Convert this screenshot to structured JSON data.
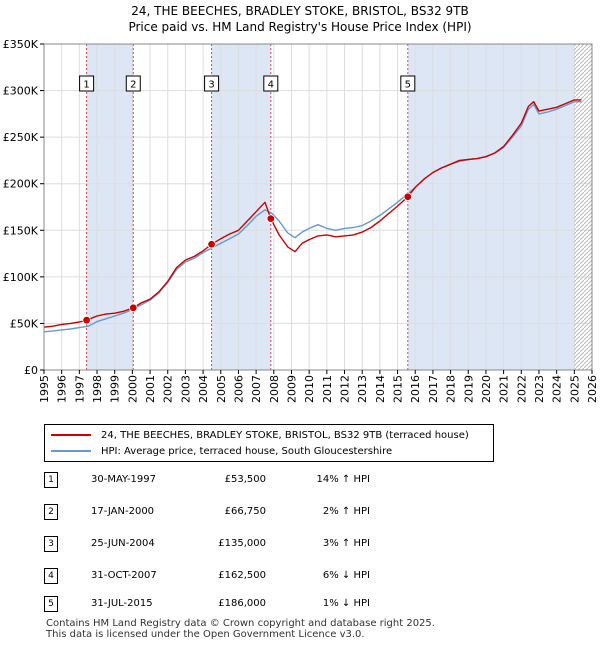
{
  "title": {
    "line1": "24, THE BEECHES, BRADLEY STOKE, BRISTOL, BS32 9TB",
    "line2": "Price paid vs. HM Land Registry's House Price Index (HPI)"
  },
  "colors": {
    "property": "#cc0000",
    "hpi": "#6699cc",
    "shade": "#dde6f5",
    "marker_line": "#dd4444",
    "grid": "#dddddd"
  },
  "chart_data": {
    "type": "line",
    "xlim": [
      1995,
      2026
    ],
    "ylim": [
      0,
      350000
    ],
    "x_ticks": [
      "1995",
      "1996",
      "1997",
      "1998",
      "1999",
      "2000",
      "2001",
      "2002",
      "2003",
      "2004",
      "2005",
      "2006",
      "2007",
      "2008",
      "2009",
      "2010",
      "2011",
      "2012",
      "2013",
      "2014",
      "2015",
      "2016",
      "2017",
      "2018",
      "2019",
      "2020",
      "2021",
      "2022",
      "2023",
      "2024",
      "2025",
      "2026"
    ],
    "y_ticks": [
      {
        "value": 0,
        "label": "£0"
      },
      {
        "value": 50000,
        "label": "£50K"
      },
      {
        "value": 100000,
        "label": "£100K"
      },
      {
        "value": 150000,
        "label": "£150K"
      },
      {
        "value": 200000,
        "label": "£200K"
      },
      {
        "value": 250000,
        "label": "£250K"
      },
      {
        "value": 300000,
        "label": "£300K"
      },
      {
        "value": 350000,
        "label": "£350K"
      }
    ],
    "series": [
      {
        "name": "24, THE BEECHES, BRADLEY STOKE, BRISTOL, BS32 9TB (terraced house)",
        "color": "#cc0000",
        "x": [
          1995.0,
          1995.5,
          1996.0,
          1996.5,
          1997.0,
          1997.41,
          1998.0,
          1998.5,
          1999.0,
          1999.5,
          2000.05,
          2000.5,
          2001.0,
          2001.5,
          2002.0,
          2002.5,
          2003.0,
          2003.5,
          2004.0,
          2004.48,
          2005.0,
          2005.5,
          2006.0,
          2006.5,
          2007.0,
          2007.5,
          2007.83,
          2008.3,
          2008.8,
          2009.2,
          2009.6,
          2010.0,
          2010.5,
          2011.0,
          2011.5,
          2012.0,
          2012.5,
          2013.0,
          2013.5,
          2014.0,
          2014.5,
          2015.0,
          2015.58,
          2016.0,
          2016.5,
          2017.0,
          2017.5,
          2018.0,
          2018.5,
          2019.0,
          2019.5,
          2020.0,
          2020.5,
          2021.0,
          2021.5,
          2022.0,
          2022.4,
          2022.7,
          2023.0,
          2023.5,
          2024.0,
          2024.5,
          2025.0,
          2025.4
        ],
        "y": [
          46000,
          47000,
          49000,
          50000,
          51500,
          53500,
          58000,
          60000,
          61000,
          63000,
          66750,
          72000,
          76000,
          84000,
          95000,
          110000,
          118000,
          122000,
          128000,
          135000,
          141000,
          146000,
          150000,
          160000,
          170000,
          180000,
          162500,
          145000,
          132000,
          127000,
          136000,
          140000,
          144000,
          145000,
          143000,
          144000,
          145000,
          148000,
          153000,
          160000,
          168000,
          176000,
          186000,
          196000,
          205000,
          212000,
          217000,
          221000,
          225000,
          226000,
          227000,
          229000,
          233000,
          240000,
          252000,
          265000,
          283000,
          288000,
          278000,
          280000,
          282000,
          286000,
          290000,
          290000
        ]
      },
      {
        "name": "HPI: Average price, terraced house, South Gloucestershire",
        "color": "#6699cc",
        "x": [
          1995.0,
          1995.5,
          1996.0,
          1996.5,
          1997.0,
          1997.5,
          1998.0,
          1998.5,
          1999.0,
          1999.5,
          2000.0,
          2000.5,
          2001.0,
          2001.5,
          2002.0,
          2002.5,
          2003.0,
          2003.5,
          2004.0,
          2004.5,
          2005.0,
          2005.5,
          2006.0,
          2006.5,
          2007.0,
          2007.5,
          2007.9,
          2008.3,
          2008.8,
          2009.2,
          2009.6,
          2010.0,
          2010.5,
          2011.0,
          2011.5,
          2012.0,
          2012.5,
          2013.0,
          2013.5,
          2014.0,
          2014.5,
          2015.0,
          2015.5,
          2016.0,
          2016.5,
          2017.0,
          2017.5,
          2018.0,
          2018.5,
          2019.0,
          2019.5,
          2020.0,
          2020.5,
          2021.0,
          2021.5,
          2022.0,
          2022.4,
          2022.7,
          2023.0,
          2023.5,
          2024.0,
          2024.5,
          2025.0,
          2025.4
        ],
        "y": [
          41000,
          42000,
          43000,
          44000,
          45500,
          47000,
          52000,
          55000,
          58000,
          61000,
          65000,
          70000,
          75000,
          83000,
          94000,
          108000,
          116000,
          120000,
          126000,
          131000,
          136000,
          141000,
          146000,
          155000,
          165000,
          172000,
          168000,
          160000,
          147000,
          142000,
          148000,
          152000,
          156000,
          152000,
          150000,
          152000,
          153000,
          155000,
          160000,
          166000,
          173000,
          180000,
          188000,
          196000,
          205000,
          212000,
          217000,
          221000,
          224000,
          226000,
          227000,
          229000,
          233000,
          239000,
          250000,
          262000,
          280000,
          285000,
          275000,
          277000,
          280000,
          284000,
          288000,
          288000
        ]
      }
    ],
    "shaded_ranges": [
      [
        1997.41,
        2000.05
      ],
      [
        2004.48,
        2007.83
      ],
      [
        2015.58,
        2025.0
      ]
    ],
    "projection_from": 2025.0,
    "sale_markers": [
      {
        "label": "1",
        "x": 1997.41,
        "y": 53500
      },
      {
        "label": "2",
        "x": 2000.05,
        "y": 66750
      },
      {
        "label": "3",
        "x": 2004.48,
        "y": 135000
      },
      {
        "label": "4",
        "x": 2007.83,
        "y": 162500
      },
      {
        "label": "5",
        "x": 2015.58,
        "y": 186000
      }
    ]
  },
  "legend": {
    "property_label": "24, THE BEECHES, BRADLEY STOKE, BRISTOL, BS32 9TB (terraced house)",
    "hpi_label": "HPI: Average price, terraced house, South Gloucestershire"
  },
  "sales": [
    {
      "num": "1",
      "date": "30-MAY-1997",
      "price": "£53,500",
      "hpi": "14% ↑ HPI"
    },
    {
      "num": "2",
      "date": "17-JAN-2000",
      "price": "£66,750",
      "hpi": "2% ↑ HPI"
    },
    {
      "num": "3",
      "date": "25-JUN-2004",
      "price": "£135,000",
      "hpi": "3% ↑ HPI"
    },
    {
      "num": "4",
      "date": "31-OCT-2007",
      "price": "£162,500",
      "hpi": "6% ↓ HPI"
    },
    {
      "num": "5",
      "date": "31-JUL-2015",
      "price": "£186,000",
      "hpi": "1% ↓ HPI"
    }
  ],
  "footer": {
    "line1": "Contains HM Land Registry data © Crown copyright and database right 2025.",
    "line2": "This data is licensed under the Open Government Licence v3.0."
  }
}
